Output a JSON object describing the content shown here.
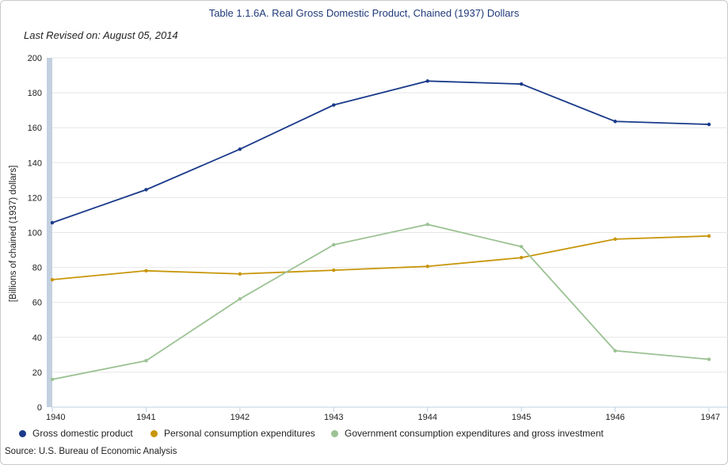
{
  "header": {
    "title": "Table 1.1.6A. Real Gross Domestic Product, Chained (1937) Dollars",
    "revised": "Last Revised on: August 05, 2014"
  },
  "footer": {
    "source": "Source: U.S. Bureau of Economic  Analysis"
  },
  "chart_data": {
    "type": "line",
    "title": "Table 1.1.6A. Real Gross Domestic Product, Chained (1937) Dollars",
    "xlabel": "",
    "ylabel": "[Billions of chained (1937) dollars]",
    "x": [
      "1940",
      "1941",
      "1942",
      "1943",
      "1944",
      "1945",
      "1946",
      "1947"
    ],
    "ylim": [
      0,
      200
    ],
    "yticks": [
      0,
      20,
      40,
      60,
      80,
      100,
      120,
      140,
      160,
      180,
      200
    ],
    "grid": true,
    "legend_position": "bottom",
    "series": [
      {
        "name": "Gross domestic product",
        "color": "#1a3a8a",
        "values": [
          105.6,
          124.5,
          147.7,
          173.0,
          186.7,
          185.0,
          163.6,
          161.9
        ]
      },
      {
        "name": "Personal consumption expenditures",
        "color": "#c8960a",
        "values": [
          73.0,
          78.1,
          76.3,
          78.4,
          80.6,
          85.6,
          96.2,
          98.0
        ]
      },
      {
        "name": "Government consumption expenditures and gross investment",
        "color": "#9cc294",
        "values": [
          15.9,
          26.6,
          62.0,
          93.0,
          104.6,
          91.9,
          32.3,
          27.4
        ]
      }
    ]
  }
}
